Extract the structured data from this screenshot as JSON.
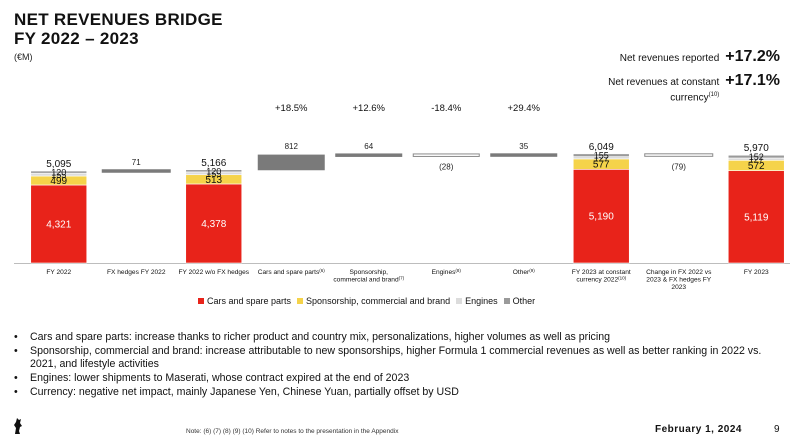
{
  "title_line1": "NET REVENUES BRIDGE",
  "title_line2": "FY 2022 – 2023",
  "unit": "(€M)",
  "kpis": {
    "reported_label": "Net revenues reported",
    "reported_value": "+17.2%",
    "constant_label": "Net revenues at constant currency",
    "constant_sup": "(10)",
    "constant_value": "+17.1%"
  },
  "colors": {
    "cars": "#e8231a",
    "sponsorship": "#f5d34a",
    "engines": "#dcdcdc",
    "other": "#9a9a9a",
    "delta": "#7a7a7a"
  },
  "chart_data": {
    "type": "bar",
    "subtype": "waterfall",
    "categories": [
      "FY 2022",
      "FX hedges FY 2022",
      "FY 2022 w/o FX hedges",
      "Cars and spare parts",
      "Sponsorship, commercial and brand",
      "Engines",
      "Other",
      "FY 2023 at constant currency 2022",
      "Change in FX 2022 vs 2023 & FX hedges FY 2023",
      "FY 2023"
    ],
    "category_notes": [
      "",
      "",
      "",
      "(6)",
      "(7)",
      "(8)",
      "(9)",
      "(10)",
      "",
      ""
    ],
    "totals": [
      {
        "index": 0,
        "total": 5095,
        "cars": 4321,
        "sponsorship": 499,
        "engines": 155,
        "other": 120
      },
      {
        "index": 2,
        "total": 5166,
        "cars": 4378,
        "sponsorship": 513,
        "engines": 155,
        "other": 120
      },
      {
        "index": 7,
        "total": 6049,
        "cars": 5190,
        "sponsorship": 577,
        "engines": 127,
        "other": 155
      },
      {
        "index": 9,
        "total": 5970,
        "cars": 5119,
        "sponsorship": 572,
        "engines": 127,
        "other": 152
      }
    ],
    "deltas": [
      {
        "index": 1,
        "value": 71,
        "label": "71",
        "pct": ""
      },
      {
        "index": 3,
        "value": 812,
        "label": "812",
        "pct": "+18.5%"
      },
      {
        "index": 4,
        "value": 64,
        "label": "64",
        "pct": "+12.6%"
      },
      {
        "index": 5,
        "value": -28,
        "label": "(28)",
        "pct": "-18.4%"
      },
      {
        "index": 6,
        "value": 35,
        "label": "35",
        "pct": "+29.4%"
      },
      {
        "index": 8,
        "value": -79,
        "label": "(79)",
        "pct": ""
      }
    ],
    "series": [
      {
        "name": "Cars and spare parts"
      },
      {
        "name": "Sponsorship, commercial and brand"
      },
      {
        "name": "Engines"
      },
      {
        "name": "Other"
      }
    ],
    "legend_position": "bottom"
  },
  "bullets": [
    "Cars and spare parts: increase thanks to richer product and country mix, personalizations, higher volumes as well as pricing",
    "Sponsorship, commercial and brand: increase attributable to new sponsorships, higher Formula 1 commercial revenues as well as better ranking in 2022 vs. 2021, and lifestyle activities",
    "Engines: lower shipments to Maserati, whose contract expired at the end of 2023",
    "Currency: negative net impact, mainly Japanese Yen, Chinese Yuan, partially offset by USD"
  ],
  "footnote": "Note: (6) (7) (8) (9) (10) Refer to notes to the presentation in the Appendix",
  "date": "February 1, 2024",
  "page": "9"
}
